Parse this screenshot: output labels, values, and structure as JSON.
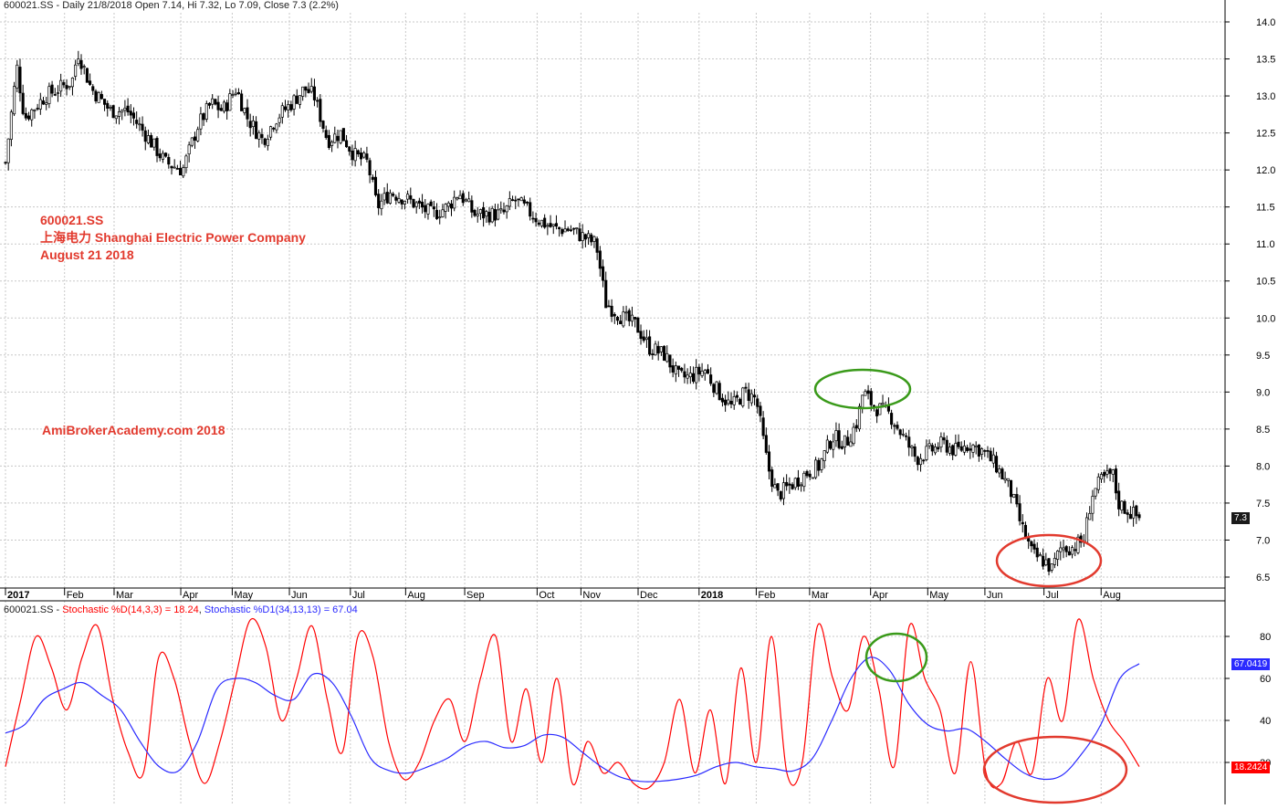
{
  "price_header": "600021.SS - Daily 21/8/2018 Open 7.14, Hi 7.32, Lo 7.09, Close 7.3 (2.2%)",
  "stoch_header": {
    "prefix": "600021.SS - ",
    "k_label": "Stochastic %D(14,3,3) = 18.24",
    "sep": ", ",
    "d_label": "Stochastic %D1(34,13,13) = 67.04"
  },
  "annotations": {
    "ticker": "600021.SS",
    "company": "上海电力  Shanghai Electric Power Company",
    "date": "August 21 2018",
    "watermark": "AmiBrokerAcademy.com 2018"
  },
  "colors": {
    "price_bar": "#000000",
    "stoch_k": "#ff0000",
    "stoch_d": "#2a2aff",
    "green_marker": "#3a9a1a",
    "red_marker": "#e23a2e",
    "grid": "#c8c8c8",
    "last_price_tag": "#1a1a1a",
    "d_tag": "#2a2aff",
    "k_tag": "#ff0000"
  },
  "chart_data": [
    {
      "type": "candlestick",
      "title": "600021.SS - Daily 21/8/2018",
      "x_tick_labels": [
        "2017",
        "Feb",
        "Mar",
        "Apr",
        "May",
        "Jun",
        "Jul",
        "Aug",
        "Sep",
        "Oct",
        "Nov",
        "Dec",
        "2018",
        "Feb",
        "Mar",
        "Apr",
        "May",
        "Jun",
        "Jul",
        "Aug"
      ],
      "y_tick_labels": [
        "14.0",
        "13.5",
        "13.0",
        "12.5",
        "12.0",
        "11.5",
        "11.0",
        "10.5",
        "10.0",
        "9.5",
        "9.0",
        "8.5",
        "8.0",
        "7.5",
        "7.0",
        "6.5"
      ],
      "ylim": [
        6.5,
        14.0
      ],
      "grid": true,
      "last_value_label": "7.3",
      "last_value": 7.3,
      "ohlc_last": {
        "open": 7.14,
        "high": 7.32,
        "low": 7.09,
        "close": 7.3
      },
      "approx_close_path": [
        [
          "2017-01-03",
          12.1
        ],
        [
          "2017-01-09",
          13.4
        ],
        [
          "2017-01-13",
          12.7
        ],
        [
          "2017-01-24",
          13.0
        ],
        [
          "2017-02-07",
          13.2
        ],
        [
          "2017-02-10",
          13.6
        ],
        [
          "2017-02-17",
          13.1
        ],
        [
          "2017-02-27",
          12.8
        ],
        [
          "2017-03-08",
          12.8
        ],
        [
          "2017-03-17",
          12.5
        ],
        [
          "2017-03-28",
          12.1
        ],
        [
          "2017-04-06",
          12.0
        ],
        [
          "2017-04-14",
          12.6
        ],
        [
          "2017-04-21",
          12.9
        ],
        [
          "2017-04-27",
          12.8
        ],
        [
          "2017-05-04",
          13.1
        ],
        [
          "2017-05-10",
          12.7
        ],
        [
          "2017-05-18",
          12.4
        ],
        [
          "2017-05-25",
          12.7
        ],
        [
          "2017-06-02",
          12.9
        ],
        [
          "2017-06-09",
          13.1
        ],
        [
          "2017-06-14",
          13.0
        ],
        [
          "2017-06-21",
          12.4
        ],
        [
          "2017-06-28",
          12.5
        ],
        [
          "2017-07-05",
          12.2
        ],
        [
          "2017-07-12",
          12.1
        ],
        [
          "2017-07-17",
          11.5
        ],
        [
          "2017-07-24",
          11.7
        ],
        [
          "2017-08-02",
          11.6
        ],
        [
          "2017-08-15",
          11.4
        ],
        [
          "2017-08-23",
          11.5
        ],
        [
          "2017-08-29",
          11.7
        ],
        [
          "2017-09-06",
          11.4
        ],
        [
          "2017-09-14",
          11.4
        ],
        [
          "2017-09-21",
          11.4
        ],
        [
          "2017-09-27",
          11.6
        ],
        [
          "2017-10-11",
          11.3
        ],
        [
          "2017-10-19",
          11.2
        ],
        [
          "2017-10-26",
          11.2
        ],
        [
          "2017-11-02",
          11.1
        ],
        [
          "2017-11-09",
          11.0
        ],
        [
          "2017-11-14",
          10.2
        ],
        [
          "2017-11-23",
          10.0
        ],
        [
          "2017-11-30",
          9.9
        ],
        [
          "2017-12-07",
          9.6
        ],
        [
          "2017-12-15",
          9.5
        ],
        [
          "2017-12-22",
          9.2
        ],
        [
          "2017-12-28",
          9.2
        ],
        [
          "2018-01-05",
          9.3
        ],
        [
          "2018-01-12",
          9.0
        ],
        [
          "2018-01-19",
          8.8
        ],
        [
          "2018-01-26",
          9.0
        ],
        [
          "2018-02-01",
          8.9
        ],
        [
          "2018-02-07",
          8.0
        ],
        [
          "2018-02-12",
          7.6
        ],
        [
          "2018-02-27",
          7.9
        ],
        [
          "2018-03-06",
          8.0
        ],
        [
          "2018-03-13",
          8.4
        ],
        [
          "2018-03-20",
          8.3
        ],
        [
          "2018-03-26",
          8.6
        ],
        [
          "2018-03-29",
          9.0
        ],
        [
          "2018-04-04",
          8.8
        ],
        [
          "2018-04-12",
          8.7
        ],
        [
          "2018-04-19",
          8.4
        ],
        [
          "2018-04-26",
          8.1
        ],
        [
          "2018-05-03",
          8.2
        ],
        [
          "2018-05-10",
          8.3
        ],
        [
          "2018-05-17",
          8.2
        ],
        [
          "2018-05-24",
          8.3
        ],
        [
          "2018-05-31",
          8.2
        ],
        [
          "2018-06-07",
          8.0
        ],
        [
          "2018-06-14",
          7.7
        ],
        [
          "2018-06-20",
          7.2
        ],
        [
          "2018-06-26",
          6.8
        ],
        [
          "2018-07-03",
          6.7
        ],
        [
          "2018-07-06",
          6.6
        ],
        [
          "2018-07-11",
          6.9
        ],
        [
          "2018-07-17",
          6.9
        ],
        [
          "2018-07-23",
          7.0
        ],
        [
          "2018-07-27",
          7.6
        ],
        [
          "2018-08-01",
          7.8
        ],
        [
          "2018-08-07",
          7.9
        ],
        [
          "2018-08-10",
          7.5
        ],
        [
          "2018-08-15",
          7.4
        ],
        [
          "2018-08-21",
          7.3
        ]
      ]
    },
    {
      "type": "line",
      "title": "Stochastic",
      "y_tick_labels": [
        "80",
        "60",
        "40",
        "20"
      ],
      "ylim": [
        0,
        100
      ],
      "grid": true,
      "series": [
        {
          "name": "Stochastic %D(14,3,3)",
          "last_value": 18.24,
          "last_value_label": "18.2424",
          "values": [
            18,
            50,
            80,
            65,
            45,
            70,
            85,
            50,
            25,
            15,
            70,
            60,
            30,
            10,
            30,
            60,
            88,
            75,
            40,
            60,
            85,
            50,
            25,
            80,
            70,
            30,
            12,
            20,
            40,
            50,
            30,
            60,
            80,
            30,
            55,
            20,
            60,
            10,
            30,
            15,
            20,
            10,
            8,
            20,
            50,
            15,
            45,
            10,
            65,
            20,
            80,
            15,
            20,
            85,
            60,
            45,
            80,
            55,
            18,
            85,
            60,
            45,
            15,
            68,
            15,
            10,
            30,
            15,
            60,
            40,
            88,
            60,
            40,
            30,
            18
          ]
        },
        {
          "name": "Stochastic %D1(34,13,13)",
          "last_value": 67.04,
          "last_value_label": "67.0419",
          "values": [
            34,
            38,
            50,
            55,
            58,
            52,
            45,
            30,
            18,
            16,
            30,
            55,
            60,
            58,
            52,
            50,
            62,
            58,
            42,
            22,
            16,
            15,
            18,
            22,
            28,
            30,
            27,
            28,
            33,
            32,
            25,
            18,
            13,
            11,
            11,
            12,
            14,
            18,
            20,
            18,
            17,
            16,
            22,
            40,
            60,
            70,
            64,
            48,
            38,
            35,
            36,
            30,
            22,
            15,
            12,
            14,
            24,
            38,
            60,
            67
          ]
        }
      ]
    }
  ]
}
